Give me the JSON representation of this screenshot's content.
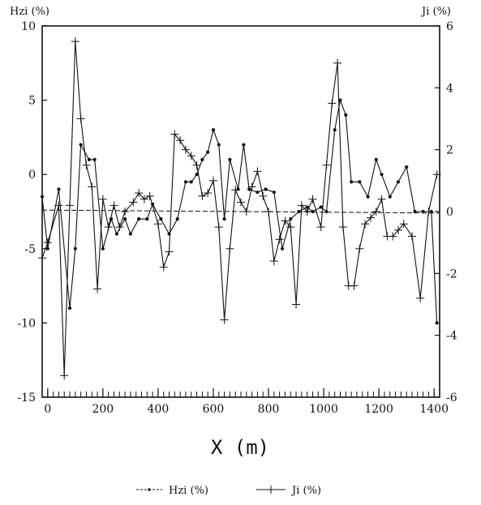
{
  "chart_data": {
    "type": "line",
    "xlabel": "X (m)",
    "ylabel": "Hzi (%)",
    "y2label": "Ji (%)",
    "xlim": [
      -20,
      1420
    ],
    "ylim": [
      -15,
      10
    ],
    "y2lim": [
      -6,
      6
    ],
    "xticks": [
      0,
      200,
      400,
      600,
      800,
      1000,
      1200,
      1400
    ],
    "xtick_labels": [
      "0",
      "200",
      "400",
      "600",
      "800",
      "1000",
      "1200",
      "1400"
    ],
    "yticks": [
      10,
      5,
      0,
      -5,
      -10,
      -15
    ],
    "ytick_labels": [
      "10",
      "5",
      "0",
      "-5",
      "-10",
      "-15"
    ],
    "y2ticks": [
      6,
      4,
      2,
      0,
      -2,
      -4,
      -6
    ],
    "y2tick_labels": [
      "6",
      "4",
      "2",
      "0",
      "-2",
      "-4",
      "-6"
    ],
    "grid": false,
    "legend": "bottom-center",
    "series": [
      {
        "name": "Hzi (%)",
        "axis": "left",
        "marker": "dot",
        "x": [
          -20,
          0,
          40,
          80,
          100,
          120,
          150,
          170,
          200,
          230,
          250,
          280,
          300,
          330,
          360,
          380,
          410,
          440,
          470,
          500,
          520,
          540,
          560,
          580,
          600,
          620,
          640,
          660,
          690,
          710,
          730,
          760,
          790,
          820,
          850,
          880,
          910,
          940,
          960,
          990,
          1010,
          1040,
          1060,
          1080,
          1100,
          1130,
          1160,
          1190,
          1210,
          1240,
          1270,
          1300,
          1330,
          1360,
          1390,
          1410
        ],
        "y": [
          -1.5,
          -5,
          -1,
          -9,
          -5,
          2,
          1,
          1,
          -5,
          -3,
          -4,
          -3,
          -4,
          -3,
          -3,
          -2,
          -3,
          -4,
          -3,
          -0.5,
          -0.5,
          0,
          1,
          1.5,
          3,
          2,
          -3,
          1,
          -1,
          2,
          -1,
          -1.2,
          -1,
          -1.2,
          -5,
          -3,
          -2.5,
          -2.2,
          -2.5,
          -2.2,
          -2.5,
          3,
          5,
          4,
          -0.5,
          -0.5,
          -1.5,
          1,
          0,
          -1.5,
          -0.5,
          0.5,
          -2.5,
          -2.5,
          -2.5,
          -10
        ]
      },
      {
        "name": "Ji (%)",
        "axis": "right",
        "marker": "plus",
        "x": [
          -20,
          0,
          40,
          60,
          80,
          100,
          120,
          140,
          160,
          180,
          200,
          220,
          240,
          260,
          280,
          310,
          330,
          350,
          370,
          400,
          420,
          440,
          460,
          480,
          500,
          520,
          540,
          560,
          580,
          600,
          620,
          640,
          660,
          680,
          700,
          720,
          740,
          760,
          780,
          800,
          820,
          840,
          860,
          880,
          900,
          920,
          940,
          960,
          990,
          1010,
          1030,
          1050,
          1070,
          1090,
          1110,
          1130,
          1150,
          1170,
          1190,
          1210,
          1230,
          1250,
          1270,
          1290,
          1320,
          1350,
          1380,
          1410
        ],
        "y": [
          -1.5,
          -1,
          0.2,
          -5.3,
          0.2,
          5.5,
          3,
          1.5,
          0.8,
          -2.5,
          0.4,
          -0.5,
          0.2,
          -0.5,
          0,
          0.3,
          0.6,
          0.4,
          0.5,
          -0.4,
          -1.8,
          -1.3,
          2.5,
          2.3,
          2,
          1.8,
          1.5,
          0.5,
          0.6,
          1,
          -0.5,
          -3.5,
          -1.2,
          0.7,
          0.3,
          0,
          0.8,
          1.3,
          0.5,
          0,
          -1.6,
          -0.9,
          -0.3,
          -0.5,
          -3,
          0.2,
          0,
          0.4,
          -0.5,
          1.5,
          3.5,
          4.8,
          -0.5,
          -2.4,
          -2.4,
          -1.2,
          -0.4,
          -0.2,
          0,
          0.4,
          -0.8,
          -0.8,
          -0.6,
          -0.4,
          -0.8,
          -2.8,
          0,
          1.2
        ]
      }
    ]
  }
}
